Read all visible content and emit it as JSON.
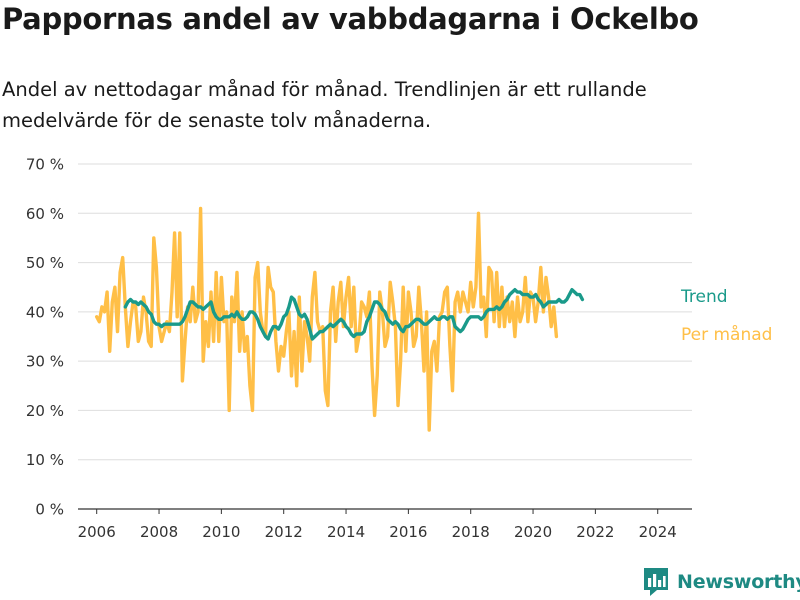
{
  "header": {
    "title": "Pappornas andel av vabbdagarna i Ockelbo",
    "subtitle": "Andel av nettodagar månad för månad. Trendlinjen är ett rullande medelvärde för de senaste tolv månaderna."
  },
  "brand": {
    "name": "Newsworthy",
    "icon": "newsworthy-logo-icon",
    "color": "#1e8a83"
  },
  "chart_data": {
    "type": "line",
    "title": "",
    "xlabel": "",
    "ylabel": "",
    "xlim": [
      2005.4,
      2025.1
    ],
    "ylim": [
      0,
      70
    ],
    "y_ticks": [
      0,
      10,
      20,
      30,
      40,
      50,
      60,
      70
    ],
    "y_tick_labels": [
      "0 %",
      "10 %",
      "20 %",
      "30 %",
      "40 %",
      "50 %",
      "60 %",
      "70 %"
    ],
    "x_ticks": [
      2006,
      2008,
      2010,
      2012,
      2014,
      2016,
      2018,
      2020,
      2022,
      2024
    ],
    "x_tick_labels": [
      "2006",
      "2008",
      "2010",
      "2012",
      "2014",
      "2016",
      "2018",
      "2020",
      "2022",
      "2024"
    ],
    "grid": "horizontal",
    "legend": "inline-right",
    "series": [
      {
        "name": "Per månad",
        "color": "#ffbf47",
        "x_start": 2006.0,
        "x_step_months": 1,
        "values": [
          39,
          38,
          41,
          40,
          44,
          32,
          42,
          45,
          36,
          48,
          51,
          41,
          33,
          38,
          42,
          41,
          34,
          36,
          43,
          40,
          34,
          33,
          55,
          49,
          37,
          34,
          36,
          38,
          36,
          44,
          56,
          39,
          56,
          26,
          34,
          41,
          38,
          45,
          38,
          40,
          61,
          30,
          38,
          33,
          44,
          34,
          48,
          34,
          47,
          38,
          40,
          20,
          43,
          38,
          48,
          32,
          40,
          32,
          35,
          25,
          20,
          47,
          50,
          40,
          36,
          35,
          49,
          45,
          44,
          34,
          28,
          33,
          31,
          36,
          40,
          27,
          36,
          25,
          43,
          28,
          38,
          35,
          30,
          43,
          48,
          38,
          36,
          37,
          24,
          21,
          40,
          45,
          34,
          42,
          46,
          37,
          43,
          47,
          37,
          45,
          32,
          35,
          42,
          41,
          39,
          44,
          29,
          19,
          27,
          44,
          40,
          33,
          35,
          46,
          42,
          37,
          21,
          30,
          45,
          32,
          44,
          40,
          33,
          35,
          45,
          38,
          28,
          40,
          16,
          32,
          34,
          28,
          39,
          40,
          44,
          45,
          33,
          24,
          42,
          44,
          40,
          44,
          42,
          40,
          46,
          41,
          45,
          60,
          41,
          43,
          35,
          49,
          48,
          38,
          48,
          37,
          45,
          37,
          43,
          38,
          42,
          35,
          43,
          38,
          40,
          47,
          38,
          44,
          43,
          38,
          42,
          49,
          40,
          47,
          43,
          37,
          41,
          35
        ]
      },
      {
        "name": "Trend",
        "color": "#1a9a8a",
        "x_start": 2006.917,
        "x_step_months": 1,
        "values": [
          41,
          42,
          42.5,
          42,
          42,
          41.5,
          42,
          41.5,
          41,
          40,
          39.5,
          38,
          37.5,
          37.5,
          37,
          37.5,
          37.5,
          37.5,
          37.5,
          37.5,
          37.5,
          37.5,
          38,
          39,
          40.5,
          42,
          42,
          41.5,
          41,
          41,
          40.5,
          41,
          41.5,
          42,
          40,
          39,
          38.5,
          38.5,
          39,
          39,
          39,
          39.5,
          39,
          40,
          39,
          38.5,
          38.5,
          39,
          40,
          40,
          39.5,
          38.5,
          37,
          36,
          35,
          34.5,
          36,
          37,
          37,
          36.5,
          37.5,
          39,
          39.5,
          41,
          43,
          42.5,
          41,
          39.5,
          39,
          39.5,
          38.5,
          36.5,
          34.5,
          35,
          35.5,
          36,
          36,
          36.5,
          37,
          37.5,
          37,
          37.5,
          38,
          38.5,
          38,
          37,
          36.5,
          35.5,
          35,
          35.5,
          35.5,
          35.5,
          36,
          38,
          39,
          40.5,
          42,
          42,
          41.5,
          40.5,
          40,
          38.5,
          38,
          37.5,
          38,
          37.5,
          36.5,
          36,
          37,
          37,
          37.5,
          38,
          38.5,
          38.5,
          38,
          37.5,
          37.5,
          38,
          38.5,
          39,
          38.5,
          38.5,
          39,
          39,
          38.5,
          39,
          39,
          37,
          36.5,
          36,
          36.5,
          37.5,
          38.5,
          39,
          39,
          39,
          39,
          38.5,
          39,
          40,
          40.5,
          40.5,
          40.5,
          41,
          40.5,
          41,
          42,
          42.5,
          43.5,
          44,
          44.5,
          44,
          44,
          43.5,
          43.5,
          43.5,
          43,
          43,
          43.5,
          42.5,
          42,
          41,
          41.5,
          42,
          42,
          42,
          42,
          42.5,
          42,
          42,
          42.5,
          43.5,
          44.5,
          44,
          43.5,
          43.5,
          42.5
        ]
      }
    ]
  }
}
